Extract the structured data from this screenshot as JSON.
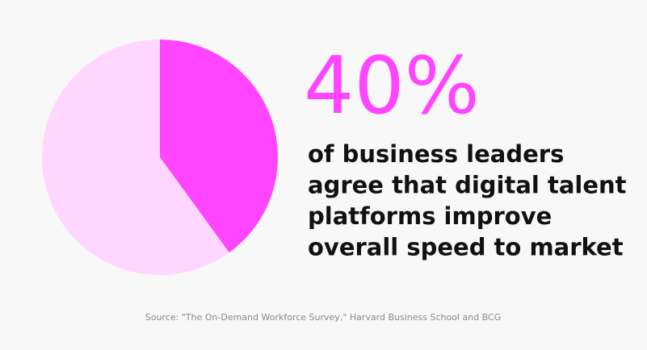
{
  "chart_data": {
    "type": "pie",
    "values": [
      40,
      60
    ],
    "value_labels": [
      "40%",
      null
    ],
    "colors": [
      "#ff45ff",
      "#ffd6ff"
    ],
    "annotation_lines": [
      "of business leaders",
      "agree that digital talent",
      "platforms improve",
      "overall speed to market"
    ],
    "source": "Source: \"The On-Demand Workforce Survey,\" Harvard Business School and BCG"
  }
}
